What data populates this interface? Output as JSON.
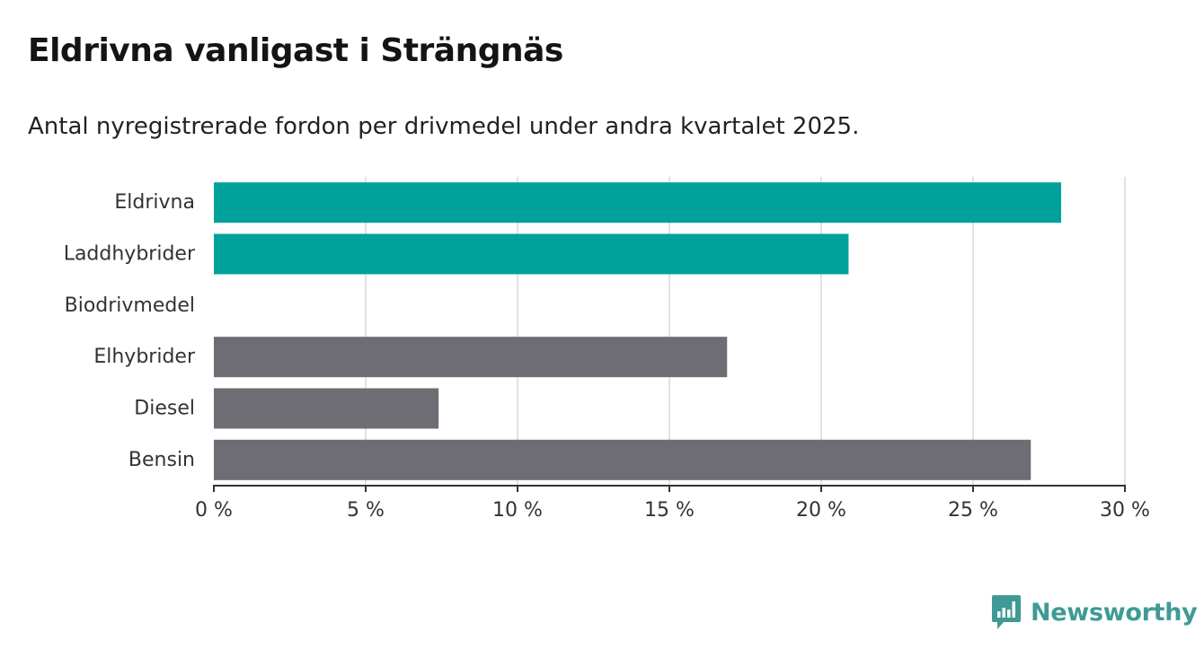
{
  "title": "Eldrivna vanligast i Strängnäs",
  "subtitle": "Antal nyregistrerade fordon per drivmedel under andra kvartalet 2025.",
  "brand": {
    "name": "Newsworthy",
    "color": "#3f9a95",
    "icon": "bar-chart-speech-bubble-icon"
  },
  "colors": {
    "highlight": "#00a29b",
    "default": "#6e6d73",
    "grid": "#d9d9d9",
    "axis": "#333333"
  },
  "chart_data": {
    "type": "bar",
    "orientation": "horizontal",
    "title": "Eldrivna vanligast i Strängnäs",
    "subtitle": "Antal nyregistrerade fordon per drivmedel under andra kvartalet 2025.",
    "xlabel": "",
    "ylabel": "",
    "unit": "%",
    "xlim": [
      0,
      30
    ],
    "ticks": [
      0,
      5,
      10,
      15,
      20,
      25,
      30
    ],
    "tick_labels": [
      "0 %",
      "5 %",
      "10 %",
      "15 %",
      "20 %",
      "25 %",
      "30 %"
    ],
    "grid": true,
    "legend": "none",
    "categories": [
      "Eldrivna",
      "Laddhybrider",
      "Biodrivmedel",
      "Elhybrider",
      "Diesel",
      "Bensin"
    ],
    "values": [
      27.9,
      20.9,
      0,
      16.9,
      7.4,
      26.9
    ],
    "highlighted": [
      true,
      true,
      true,
      false,
      false,
      false
    ]
  }
}
